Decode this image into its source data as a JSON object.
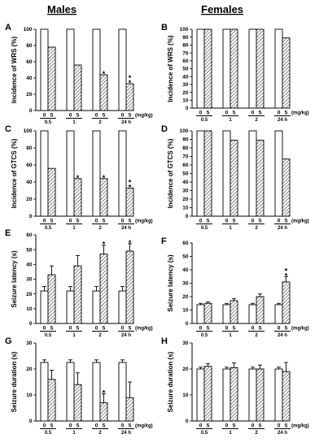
{
  "headers": {
    "left": "Males",
    "right": "Females"
  },
  "dose_labels": [
    "0",
    "5"
  ],
  "unit_label": "(mg/kg)",
  "chart_data": [
    {
      "panel": "A",
      "type": "bar",
      "ylabel": "Incidence of WRS (%)",
      "ylim": [
        0,
        100
      ],
      "yticks": [
        0,
        20,
        40,
        60,
        80,
        100
      ],
      "categories": [
        "0.5",
        "1",
        "2",
        "24 h"
      ],
      "series": [
        {
          "name": "0",
          "values": [
            100,
            100,
            100,
            100
          ]
        },
        {
          "name": "5",
          "values": [
            78,
            56,
            44,
            33
          ]
        }
      ],
      "errors": null,
      "annotations": [
        "",
        "",
        "*",
        "**"
      ]
    },
    {
      "panel": "B",
      "type": "bar",
      "ylabel": "Incidence of WRS (%)",
      "ylim": [
        0,
        100
      ],
      "yticks": [
        0,
        10,
        20,
        30,
        40,
        50,
        60,
        70,
        80,
        90,
        100
      ],
      "categories": [
        "0.5",
        "1",
        "2",
        "24 h"
      ],
      "series": [
        {
          "name": "0",
          "values": [
            100,
            100,
            100,
            100
          ]
        },
        {
          "name": "5",
          "values": [
            100,
            100,
            100,
            89
          ]
        }
      ],
      "errors": null,
      "annotations": [
        "",
        "",
        "",
        ""
      ]
    },
    {
      "panel": "C",
      "type": "bar",
      "ylabel": "Incidence of GTCS (%)",
      "ylim": [
        0,
        100
      ],
      "yticks": [
        0,
        20,
        40,
        60,
        80,
        100
      ],
      "categories": [
        "0.5",
        "1",
        "2",
        "24 h"
      ],
      "series": [
        {
          "name": "0",
          "values": [
            100,
            100,
            100,
            100
          ]
        },
        {
          "name": "5",
          "values": [
            56,
            44,
            44,
            33
          ]
        }
      ],
      "errors": null,
      "annotations": [
        "",
        "*",
        "*",
        "**"
      ]
    },
    {
      "panel": "D",
      "type": "bar",
      "ylabel": "Incidence of GTCS (%)",
      "ylim": [
        0,
        100
      ],
      "yticks": [
        0,
        10,
        20,
        30,
        40,
        50,
        60,
        70,
        80,
        90,
        100
      ],
      "categories": [
        "0.5",
        "1",
        "2",
        "24 h"
      ],
      "series": [
        {
          "name": "0",
          "values": [
            100,
            100,
            100,
            100
          ]
        },
        {
          "name": "5",
          "values": [
            100,
            89,
            89,
            67
          ]
        }
      ],
      "errors": null,
      "annotations": [
        "",
        "",
        "",
        ""
      ]
    },
    {
      "panel": "E",
      "type": "bar",
      "ylabel": "Seizure latency (s)",
      "ylim": [
        0,
        60
      ],
      "yticks": [
        0,
        10,
        20,
        30,
        40,
        50,
        60
      ],
      "categories": [
        "0.5",
        "1",
        "2",
        "24 h"
      ],
      "series": [
        {
          "name": "0",
          "values": [
            22,
            22,
            22,
            22
          ]
        },
        {
          "name": "5",
          "values": [
            33,
            39,
            47,
            49
          ]
        }
      ],
      "errors": [
        [
          3,
          3,
          3,
          3
        ],
        [
          6,
          7,
          6,
          5
        ]
      ],
      "annotations": [
        "",
        "",
        "*",
        "*"
      ]
    },
    {
      "panel": "F",
      "type": "bar",
      "ylabel": "Seizure latency (s)",
      "ylim": [
        0,
        60
      ],
      "yticks": [
        0,
        10,
        20,
        30,
        40,
        50,
        60
      ],
      "categories": [
        "0.5",
        "1",
        "2",
        "24 h"
      ],
      "series": [
        {
          "name": "0",
          "values": [
            14,
            14,
            14,
            14
          ]
        },
        {
          "name": "5",
          "values": [
            15,
            17,
            20,
            31
          ]
        }
      ],
      "errors": [
        [
          1,
          1,
          1,
          1
        ],
        [
          1,
          1.5,
          2,
          4
        ]
      ],
      "annotations": [
        "",
        "",
        "",
        "**"
      ]
    },
    {
      "panel": "G",
      "type": "bar",
      "ylabel": "Seizure duration (s)",
      "ylim": [
        0,
        30
      ],
      "yticks": [
        0,
        10,
        20,
        30
      ],
      "categories": [
        "0.5",
        "1",
        "2",
        "24 h"
      ],
      "series": [
        {
          "name": "0",
          "values": [
            22.5,
            22.5,
            22.5,
            22.5
          ]
        },
        {
          "name": "5",
          "values": [
            16,
            14,
            7,
            9
          ]
        }
      ],
      "errors": [
        [
          1,
          1,
          1,
          1
        ],
        [
          3.5,
          4.5,
          3.5,
          6
        ]
      ],
      "annotations": [
        "",
        "",
        "*",
        ""
      ]
    },
    {
      "panel": "H",
      "type": "bar",
      "ylabel": "Seizure duration (s)",
      "ylim": [
        0,
        30
      ],
      "yticks": [
        0,
        10,
        20,
        30
      ],
      "categories": [
        "0.5",
        "1",
        "2",
        "24 h"
      ],
      "series": [
        {
          "name": "0",
          "values": [
            20,
            20,
            20,
            20
          ]
        },
        {
          "name": "5",
          "values": [
            21,
            20.5,
            20,
            19
          ]
        }
      ],
      "errors": [
        [
          0.7,
          0.7,
          0.7,
          0.7
        ],
        [
          1,
          1.8,
          1.5,
          3.5
        ]
      ],
      "annotations": [
        "",
        "",
        "",
        ""
      ]
    }
  ]
}
